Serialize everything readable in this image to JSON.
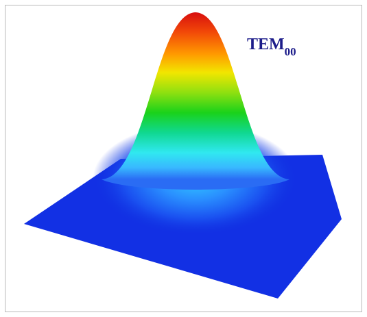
{
  "label": {
    "main": "TEM",
    "subscript": "00"
  }
}
